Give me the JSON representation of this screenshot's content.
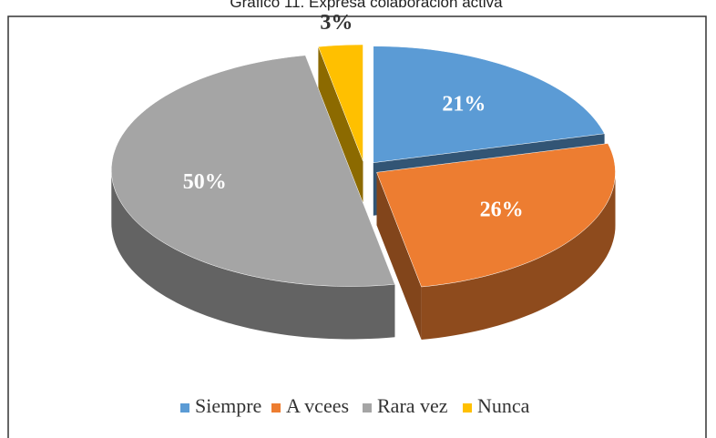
{
  "chart_data": {
    "type": "pie",
    "title": "Gráfico 11. Expresa colaboración activa",
    "categories": [
      "Siempre",
      "A vcees",
      "Rara vez",
      "Nunca"
    ],
    "values": [
      21,
      26,
      50,
      3
    ],
    "value_labels": [
      "21%",
      "26%",
      "50%",
      "3%"
    ],
    "colors": [
      "#5b9bd5",
      "#ed7d31",
      "#a5a5a5",
      "#ffc000"
    ],
    "legend": "bottom"
  }
}
